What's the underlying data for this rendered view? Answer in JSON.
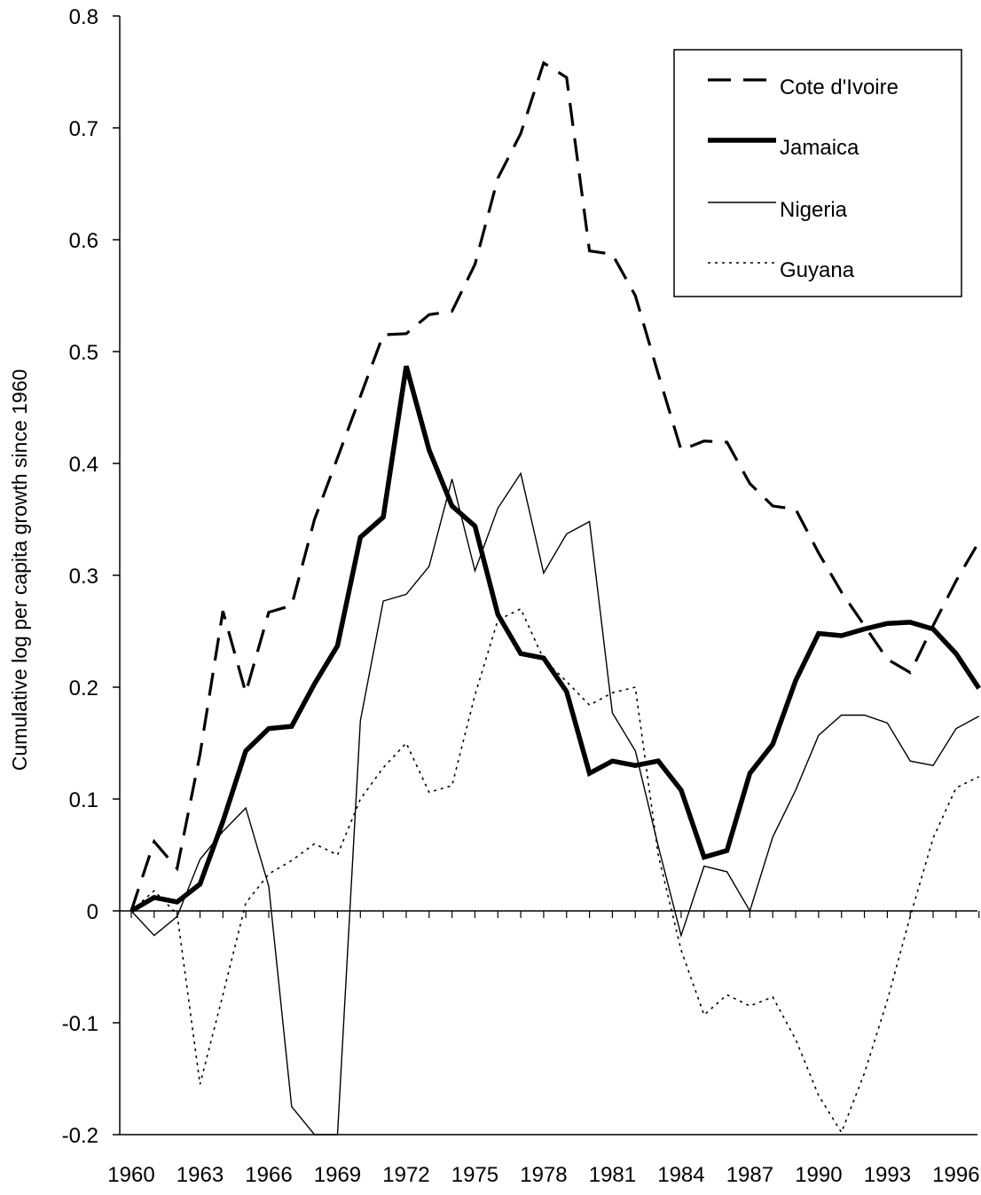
{
  "chart_data": {
    "type": "line",
    "title": "",
    "xlabel": "",
    "ylabel": "Cumulative log per capita growth since 1960",
    "ylim": [
      -0.2,
      0.8
    ],
    "xlim": [
      1960,
      1997
    ],
    "y_ticks": [
      "0.8",
      "0.7",
      "0.6",
      "0.5",
      "0.4",
      "0.3",
      "0.2",
      "0.1",
      "0",
      "-0.1",
      "-0.2"
    ],
    "y_tick_values": [
      0.8,
      0.7,
      0.6,
      0.5,
      0.4,
      0.3,
      0.2,
      0.1,
      0,
      -0.1,
      -0.2
    ],
    "x_tick_labels": [
      "1960",
      "1963",
      "1966",
      "1969",
      "1972",
      "1975",
      "1978",
      "1981",
      "1984",
      "1987",
      "1990",
      "1993",
      "1996"
    ],
    "x_tick_values": [
      1960,
      1963,
      1966,
      1969,
      1972,
      1975,
      1978,
      1981,
      1984,
      1987,
      1990,
      1993,
      1996
    ],
    "grid": false,
    "legend_position": "top-right",
    "x": [
      1960,
      1961,
      1962,
      1963,
      1964,
      1965,
      1966,
      1967,
      1968,
      1969,
      1970,
      1971,
      1972,
      1973,
      1974,
      1975,
      1976,
      1977,
      1978,
      1979,
      1980,
      1981,
      1982,
      1983,
      1984,
      1985,
      1986,
      1987,
      1988,
      1989,
      1990,
      1991,
      1992,
      1993,
      1994,
      1995,
      1996,
      1997
    ],
    "series": [
      {
        "name": "Cote d'Ivoire",
        "style": "dashed",
        "color": "#000000",
        "values": [
          0.0,
          0.062,
          0.038,
          0.14,
          0.268,
          0.195,
          0.267,
          0.273,
          0.35,
          0.405,
          0.46,
          0.515,
          0.516,
          0.533,
          0.536,
          0.578,
          0.655,
          0.695,
          0.758,
          0.745,
          0.59,
          0.587,
          0.55,
          0.48,
          0.412,
          0.42,
          0.419,
          0.382,
          0.362,
          0.359,
          0.32,
          0.285,
          0.255,
          0.225,
          0.213,
          0.255,
          0.295,
          0.33
        ]
      },
      {
        "name": "Jamaica",
        "style": "thick",
        "color": "#000000",
        "values": [
          0.0,
          0.012,
          0.008,
          0.024,
          0.08,
          0.143,
          0.163,
          0.165,
          0.203,
          0.237,
          0.334,
          0.352,
          0.487,
          0.412,
          0.362,
          0.344,
          0.265,
          0.23,
          0.226,
          0.196,
          0.123,
          0.134,
          0.13,
          0.134,
          0.108,
          0.048,
          0.054,
          0.123,
          0.149,
          0.206,
          0.248,
          0.246,
          0.252,
          0.257,
          0.258,
          0.252,
          0.23,
          0.199
        ]
      },
      {
        "name": "Nigeria",
        "style": "thin",
        "color": "#000000",
        "values": [
          0.0,
          -0.022,
          -0.005,
          0.046,
          0.071,
          0.092,
          0.022,
          -0.175,
          -0.203,
          -0.2,
          0.17,
          0.277,
          0.283,
          0.308,
          0.386,
          0.304,
          0.36,
          0.391,
          0.302,
          0.337,
          0.348,
          0.177,
          0.143,
          0.058,
          -0.022,
          0.04,
          0.035,
          0.0,
          0.066,
          0.108,
          0.157,
          0.175,
          0.175,
          0.168,
          0.134,
          0.13,
          0.163,
          0.174
        ]
      },
      {
        "name": "Guyana",
        "style": "dotted",
        "color": "#000000",
        "values": [
          0.0,
          0.018,
          -0.003,
          -0.155,
          -0.075,
          0.007,
          0.033,
          0.045,
          0.06,
          0.05,
          0.1,
          0.128,
          0.15,
          0.106,
          0.112,
          0.193,
          0.26,
          0.27,
          0.225,
          0.205,
          0.184,
          0.195,
          0.2,
          0.05,
          -0.035,
          -0.093,
          -0.075,
          -0.085,
          -0.077,
          -0.115,
          -0.165,
          -0.198,
          -0.145,
          -0.08,
          -0.005,
          0.065,
          0.11,
          0.12
        ]
      }
    ]
  }
}
